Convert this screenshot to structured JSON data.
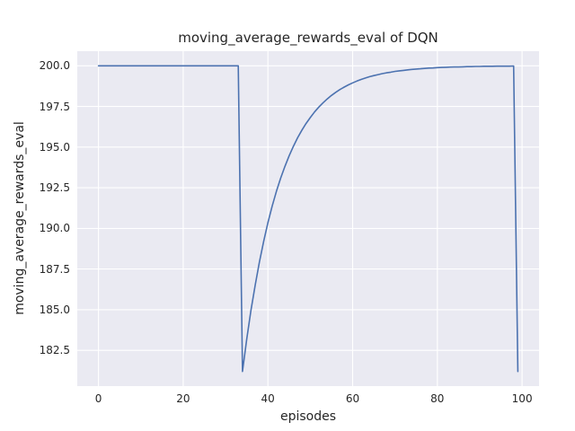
{
  "chart_data": {
    "type": "line",
    "title": "moving_average_rewards_eval of DQN",
    "xlabel": "episodes",
    "ylabel": "moving_average_rewards_eval",
    "xlim": [
      -5,
      104
    ],
    "ylim": [
      180.3,
      200.9
    ],
    "xticks": [
      "0",
      "20",
      "40",
      "60",
      "80",
      "100"
    ],
    "yticks": [
      "182.5",
      "185.0",
      "187.5",
      "190.0",
      "192.5",
      "195.0",
      "197.5",
      "200.0"
    ],
    "grid": true,
    "legend": "none",
    "plot_bg": "#eaeaf2",
    "grid_color": "#ffffff",
    "line_color": "#4c72b0",
    "series": [
      {
        "name": "moving_average_rewards_eval",
        "x": [
          0,
          1,
          2,
          3,
          4,
          5,
          6,
          7,
          8,
          9,
          10,
          11,
          12,
          13,
          14,
          15,
          16,
          17,
          18,
          19,
          20,
          21,
          22,
          23,
          24,
          25,
          26,
          27,
          28,
          29,
          30,
          31,
          32,
          33,
          34,
          35,
          36,
          37,
          38,
          39,
          40,
          41,
          42,
          43,
          44,
          45,
          46,
          47,
          48,
          49,
          50,
          51,
          52,
          53,
          54,
          55,
          56,
          57,
          58,
          59,
          60,
          61,
          62,
          63,
          64,
          65,
          66,
          67,
          68,
          69,
          70,
          71,
          72,
          73,
          74,
          75,
          76,
          77,
          78,
          79,
          80,
          81,
          82,
          83,
          84,
          85,
          86,
          87,
          88,
          89,
          90,
          91,
          92,
          93,
          94,
          95,
          96,
          97,
          98,
          99
        ],
        "y": [
          200.0,
          200.0,
          200.0,
          200.0,
          200.0,
          200.0,
          200.0,
          200.0,
          200.0,
          200.0,
          200.0,
          200.0,
          200.0,
          200.0,
          200.0,
          200.0,
          200.0,
          200.0,
          200.0,
          200.0,
          200.0,
          200.0,
          200.0,
          200.0,
          200.0,
          200.0,
          200.0,
          200.0,
          200.0,
          200.0,
          200.0,
          200.0,
          200.0,
          200.0,
          181.2,
          183.18,
          184.95,
          186.53,
          187.95,
          189.21,
          190.35,
          191.36,
          192.27,
          193.08,
          193.81,
          194.46,
          195.04,
          195.57,
          196.03,
          196.45,
          196.82,
          197.16,
          197.46,
          197.72,
          197.96,
          198.18,
          198.37,
          198.54,
          198.69,
          198.83,
          198.95,
          199.06,
          199.16,
          199.25,
          199.33,
          199.4,
          199.46,
          199.52,
          199.57,
          199.61,
          199.66,
          199.69,
          199.72,
          199.75,
          199.78,
          199.8,
          199.82,
          199.84,
          199.86,
          199.87,
          199.89,
          199.9,
          199.91,
          199.92,
          199.93,
          199.93,
          199.94,
          199.95,
          199.95,
          199.96,
          199.96,
          199.97,
          199.97,
          199.97,
          199.98,
          199.98,
          199.98,
          199.98,
          199.99,
          181.2
        ]
      }
    ]
  }
}
